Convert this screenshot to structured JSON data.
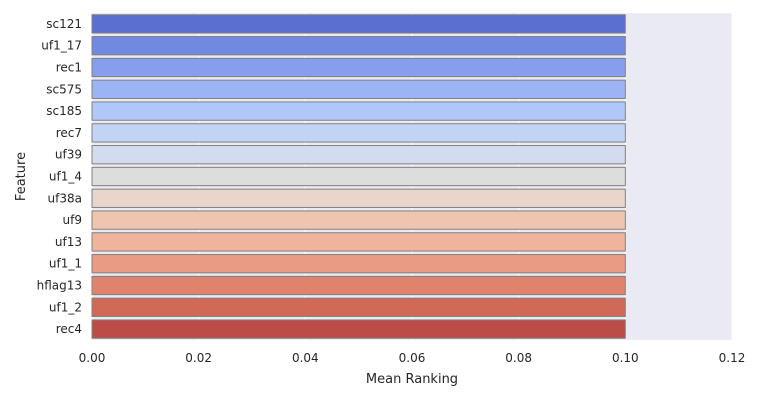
{
  "chart_data": {
    "type": "bar",
    "orientation": "horizontal",
    "xlabel": "Mean Ranking",
    "ylabel": "Feature",
    "xlim": [
      0.0,
      0.12
    ],
    "xticks": [
      "0.00",
      "0.02",
      "0.04",
      "0.06",
      "0.08",
      "0.10",
      "0.12"
    ],
    "grid": true,
    "categories": [
      "sc121",
      "uf1_17",
      "rec1",
      "sc575",
      "sc185",
      "rec7",
      "uf39",
      "uf1_4",
      "uf38a",
      "uf9",
      "uf13",
      "uf1_1",
      "hflag13",
      "uf1_2",
      "rec4"
    ],
    "values": [
      0.1,
      0.1,
      0.1,
      0.1,
      0.1,
      0.1,
      0.1,
      0.1,
      0.1,
      0.1,
      0.1,
      0.1,
      0.1,
      0.1,
      0.1
    ],
    "colors": [
      "#5b6fd0",
      "#7189e0",
      "#869eed",
      "#9cb4f6",
      "#b0c7f9",
      "#c2d4f6",
      "#d2dcee",
      "#dddddd",
      "#e8d6cb",
      "#f0c5b0",
      "#f0b39b",
      "#e99b83",
      "#df836d",
      "#d06955",
      "#bb4c48"
    ],
    "background": "#eaeaf2"
  }
}
